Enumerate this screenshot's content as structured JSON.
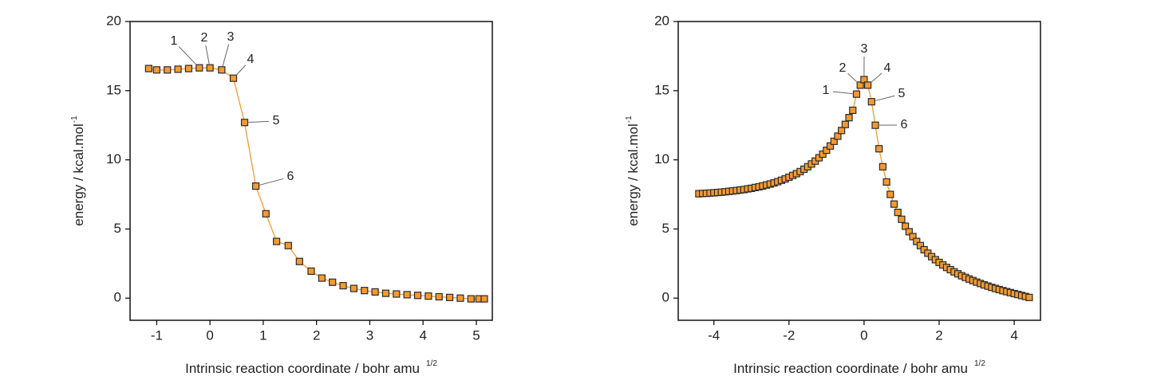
{
  "chart_data": [
    {
      "type": "line",
      "x": [
        -1.15,
        -1.0,
        -0.8,
        -0.6,
        -0.4,
        -0.2,
        0,
        0.22,
        0.44,
        0.65,
        0.86,
        1.05,
        1.25,
        1.47,
        1.68,
        1.9,
        2.1,
        2.3,
        2.5,
        2.7,
        2.9,
        3.1,
        3.3,
        3.5,
        3.7,
        3.9,
        4.1,
        4.3,
        4.5,
        4.7,
        4.9,
        5.05,
        5.15
      ],
      "values": [
        16.6,
        16.5,
        16.5,
        16.55,
        16.6,
        16.65,
        16.65,
        16.5,
        15.9,
        12.7,
        8.1,
        6.1,
        4.1,
        3.8,
        2.65,
        1.95,
        1.45,
        1.15,
        0.9,
        0.7,
        0.55,
        0.45,
        0.35,
        0.3,
        0.25,
        0.2,
        0.15,
        0.1,
        0.05,
        0,
        -0.05,
        -0.05,
        -0.05
      ],
      "color": "#f59a2f",
      "marker_edge_color": "#2a2a2a",
      "xlim": [
        -1.5,
        5.3
      ],
      "ylim": [
        -1.6,
        20
      ],
      "xticks": [
        -1,
        0,
        1,
        2,
        3,
        4,
        5
      ],
      "yticks": [
        0,
        5,
        10,
        15,
        20
      ],
      "xlabel": "Intrinsic reaction coordinate / bohr amu",
      "xlabel_sup": "1/2",
      "ylabel": "energy / kcal.mol",
      "ylabel_sup": "-1",
      "annotations": [
        "1",
        "2",
        "3",
        "4",
        "5",
        "6"
      ]
    },
    {
      "type": "line",
      "x": [
        -4.4,
        -4.3,
        -4.2,
        -4.1,
        -4.0,
        -3.9,
        -3.8,
        -3.7,
        -3.6,
        -3.5,
        -3.4,
        -3.3,
        -3.2,
        -3.1,
        -3.0,
        -2.9,
        -2.8,
        -2.7,
        -2.6,
        -2.5,
        -2.4,
        -2.3,
        -2.2,
        -2.1,
        -2.0,
        -1.9,
        -1.8,
        -1.7,
        -1.6,
        -1.5,
        -1.4,
        -1.3,
        -1.2,
        -1.1,
        -1.0,
        -0.9,
        -0.8,
        -0.7,
        -0.6,
        -0.5,
        -0.4,
        -0.3,
        -0.2,
        -0.1,
        0,
        0.1,
        0.2,
        0.3,
        0.4,
        0.5,
        0.6,
        0.7,
        0.8,
        0.9,
        1.0,
        1.1,
        1.2,
        1.3,
        1.4,
        1.5,
        1.6,
        1.7,
        1.8,
        1.9,
        2.0,
        2.1,
        2.2,
        2.3,
        2.4,
        2.5,
        2.6,
        2.7,
        2.8,
        2.9,
        3.0,
        3.1,
        3.2,
        3.3,
        3.4,
        3.5,
        3.6,
        3.7,
        3.8,
        3.9,
        4.0,
        4.1,
        4.2,
        4.3,
        4.4
      ],
      "values": [
        7.55,
        7.57,
        7.58,
        7.6,
        7.62,
        7.64,
        7.66,
        7.69,
        7.72,
        7.75,
        7.78,
        7.82,
        7.85,
        7.9,
        7.94,
        8.0,
        8.05,
        8.11,
        8.18,
        8.25,
        8.33,
        8.42,
        8.52,
        8.62,
        8.74,
        8.87,
        9.0,
        9.15,
        9.32,
        9.5,
        9.7,
        9.91,
        10.15,
        10.41,
        10.69,
        11.0,
        11.34,
        11.71,
        12.12,
        12.56,
        13.05,
        13.58,
        14.75,
        15.4,
        15.8,
        15.4,
        14.2,
        12.5,
        10.8,
        9.5,
        8.4,
        7.5,
        6.8,
        6.2,
        5.7,
        5.2,
        4.8,
        4.45,
        4.1,
        3.8,
        3.5,
        3.25,
        3.0,
        2.78,
        2.58,
        2.4,
        2.22,
        2.06,
        1.9,
        1.76,
        1.62,
        1.5,
        1.38,
        1.27,
        1.16,
        1.06,
        0.96,
        0.87,
        0.78,
        0.7,
        0.62,
        0.54,
        0.47,
        0.4,
        0.33,
        0.26,
        0.19,
        0.12,
        0.05
      ],
      "color": "#f59a2f",
      "marker_edge_color": "#2a2a2a",
      "xlim": [
        -4.95,
        4.7
      ],
      "ylim": [
        -1.6,
        20
      ],
      "xticks": [
        -4,
        -2,
        0,
        2,
        4
      ],
      "yticks": [
        0,
        5,
        10,
        15,
        20
      ],
      "xlabel": "Intrinsic reaction coordinate / bohr amu",
      "xlabel_sup": "1/2",
      "ylabel": "energy / kcal.mol",
      "ylabel_sup": "-1",
      "annotations": [
        "1",
        "2",
        "3",
        "4",
        "5",
        "6"
      ]
    }
  ]
}
